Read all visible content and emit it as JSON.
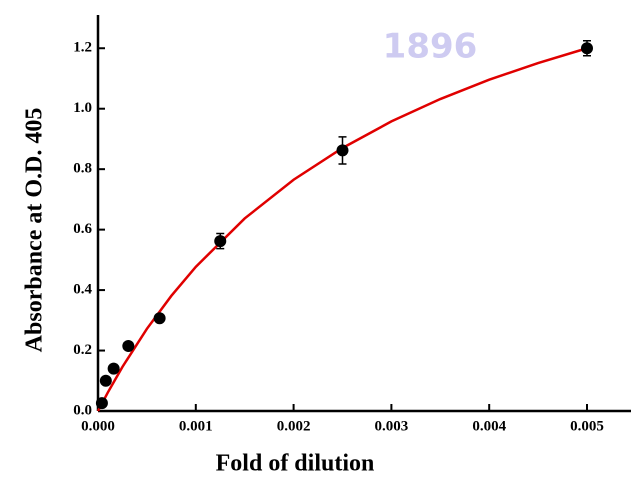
{
  "chart_data": {
    "type": "scatter",
    "watermark": "1896",
    "xlabel": "Fold of dilution",
    "ylabel": "Absorbance at O.D. 405",
    "xlim": [
      0,
      0.00545
    ],
    "ylim": [
      0,
      1.31
    ],
    "xticks": [
      {
        "value": 0,
        "label": "0.000"
      },
      {
        "value": 0.001,
        "label": "0.001"
      },
      {
        "value": 0.002,
        "label": "0.002"
      },
      {
        "value": 0.003,
        "label": "0.003"
      },
      {
        "value": 0.004,
        "label": "0.004"
      },
      {
        "value": 0.005,
        "label": "0.005"
      }
    ],
    "yticks": [
      {
        "value": 0,
        "label": "0.0"
      },
      0.2,
      0.4,
      0.6,
      0.8,
      {
        "value": 1,
        "label": "1.0"
      },
      1.2
    ],
    "series": [
      {
        "color": "#000000",
        "x": [
          4e-05,
          8e-05,
          0.00016,
          0.00031,
          0.00063,
          0.00125,
          0.0025,
          0.005
        ],
        "values": [
          0.026,
          0.1,
          0.14,
          0.215,
          0.307,
          0.562,
          0.862,
          1.2
        ],
        "errors": [
          0.008,
          0.01,
          0.01,
          0.01,
          0.01,
          0.025,
          0.045,
          0.025
        ]
      }
    ],
    "fit": {
      "color": "#e00000",
      "x": [
        0,
        0.0001,
        0.00025,
        0.0005,
        0.00075,
        0.001,
        0.0015,
        0.002,
        0.0025,
        0.003,
        0.0035,
        0.004,
        0.0045,
        0.005
      ],
      "values": [
        0,
        0.061,
        0.146,
        0.272,
        0.381,
        0.477,
        0.637,
        0.765,
        0.87,
        0.958,
        1.032,
        1.096,
        1.151,
        1.2
      ]
    }
  }
}
